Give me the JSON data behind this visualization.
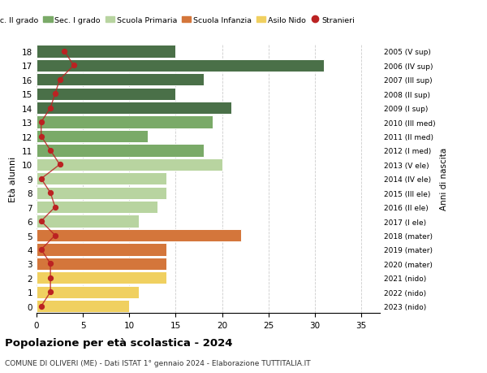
{
  "ages": [
    18,
    17,
    16,
    15,
    14,
    13,
    12,
    11,
    10,
    9,
    8,
    7,
    6,
    5,
    4,
    3,
    2,
    1,
    0
  ],
  "values": [
    15,
    31,
    18,
    15,
    21,
    19,
    12,
    18,
    20,
    14,
    14,
    13,
    11,
    22,
    14,
    14,
    14,
    11,
    10
  ],
  "right_labels": [
    "2005 (V sup)",
    "2006 (IV sup)",
    "2007 (III sup)",
    "2008 (II sup)",
    "2009 (I sup)",
    "2010 (III med)",
    "2011 (II med)",
    "2012 (I med)",
    "2013 (V ele)",
    "2014 (IV ele)",
    "2015 (III ele)",
    "2016 (II ele)",
    "2017 (I ele)",
    "2018 (mater)",
    "2019 (mater)",
    "2020 (mater)",
    "2021 (nido)",
    "2022 (nido)",
    "2023 (nido)"
  ],
  "bar_colors_by_age": {
    "18": "#4a7048",
    "17": "#4a7048",
    "16": "#4a7048",
    "15": "#4a7048",
    "14": "#4a7048",
    "13": "#7aaa68",
    "12": "#7aaa68",
    "11": "#7aaa68",
    "10": "#b8d4a0",
    "9": "#b8d4a0",
    "8": "#b8d4a0",
    "7": "#b8d4a0",
    "6": "#b8d4a0",
    "5": "#d4763b",
    "4": "#d4763b",
    "3": "#d4763b",
    "2": "#f0d060",
    "1": "#f0d060",
    "0": "#f0d060"
  },
  "stranieri_x": [
    3,
    4,
    2.5,
    2,
    1.5,
    0.5,
    0.5,
    1.5,
    2.5,
    0.5,
    1.5,
    2,
    0.5,
    2,
    0.5,
    1.5,
    1.5,
    1.5,
    0.5
  ],
  "legend_labels": [
    "Sec. II grado",
    "Sec. I grado",
    "Scuola Primaria",
    "Scuola Infanzia",
    "Asilo Nido",
    "Stranieri"
  ],
  "legend_colors": [
    "#4a7048",
    "#7aaa68",
    "#b8d4a0",
    "#d4763b",
    "#f0d060",
    "#bb2222"
  ],
  "title": "Popolazione per età scolastica - 2024",
  "subtitle": "COMUNE DI OLIVERI (ME) - Dati ISTAT 1° gennaio 2024 - Elaborazione TUTTITALIA.IT",
  "ylabel": "Età alunni",
  "right_ylabel": "Anni di nascita",
  "xlim": [
    0,
    37
  ],
  "xticks": [
    0,
    5,
    10,
    15,
    20,
    25,
    30,
    35
  ],
  "background_color": "#ffffff",
  "grid_color": "#cccccc"
}
